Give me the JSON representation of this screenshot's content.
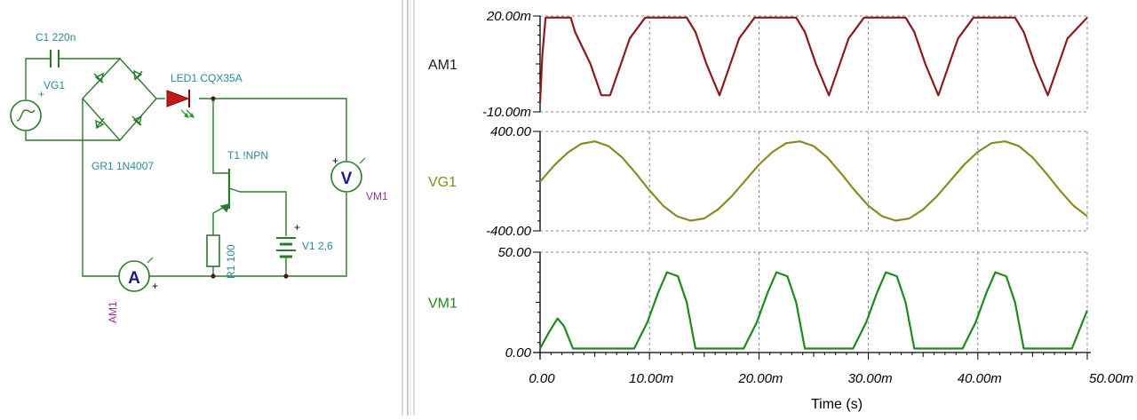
{
  "schematic": {
    "c1_label": "C1 220n",
    "vg1_label": "VG1",
    "led_label": "LED1 CQX35A",
    "bridge_label": "GR1 1N4007",
    "transistor_label": "T1 !NPN",
    "vm1_label": "VM1",
    "v1_label": "V1 2,6",
    "r1_label": "R1 100",
    "am1_label": "AM1",
    "ammeter_symbol": "A",
    "voltmeter_symbol": "V",
    "plus": "+",
    "wire_color": "#2a7a2a",
    "label_color": "#2a8a96",
    "meter_label_color": "#993399"
  },
  "plot": {
    "x_axis_title": "Time (s)",
    "x_ticks": [
      "0.00",
      "10.00m",
      "20.00m",
      "30.00m",
      "40.00m",
      "50.00m"
    ],
    "traces": [
      {
        "name": "AM1",
        "y_top": "20.00m",
        "y_bottom": "-10.00m",
        "color": "#8b1a1a"
      },
      {
        "name": "VG1",
        "y_top": "400.00",
        "y_bottom": "-400.00",
        "color": "#8a8a1e"
      },
      {
        "name": "VM1",
        "y_top": "50.00",
        "y_bottom": "0.00",
        "color": "#1e8a1e"
      }
    ]
  },
  "chart_data": {
    "type": "line",
    "x_unit": "s",
    "xlabel": "Time (s)",
    "xlim": [
      0,
      0.05
    ],
    "grid": true,
    "series": [
      {
        "name": "AM1",
        "ylim": [
          -0.01,
          0.02
        ],
        "x": [
          0,
          0.0002,
          0.0005,
          0.0028,
          0.0032,
          0.0046,
          0.0056,
          0.0064,
          0.0082,
          0.0096,
          0.0134,
          0.0142,
          0.0152,
          0.0164,
          0.0182,
          0.0196,
          0.0234,
          0.0242,
          0.0252,
          0.0264,
          0.0282,
          0.0296,
          0.0334,
          0.0342,
          0.0352,
          0.0364,
          0.0382,
          0.0396,
          0.0434,
          0.0442,
          0.0452,
          0.0464,
          0.0482,
          0.05
        ],
        "values": [
          -0.0072,
          0.0075,
          0.0195,
          0.0195,
          0.015,
          0.005,
          -0.0048,
          -0.0048,
          0.013,
          0.0195,
          0.0195,
          0.015,
          0.005,
          -0.0048,
          0.013,
          0.0195,
          0.0195,
          0.015,
          0.005,
          -0.0048,
          0.013,
          0.0195,
          0.0195,
          0.015,
          0.005,
          -0.0048,
          0.013,
          0.0195,
          0.0195,
          0.015,
          0.005,
          -0.0048,
          0.013,
          0.0195
        ]
      },
      {
        "name": "VG1",
        "ylim": [
          -400,
          400
        ],
        "x": [
          0,
          0.00125,
          0.0025,
          0.00375,
          0.005,
          0.00625,
          0.0075,
          0.00875,
          0.01,
          0.01125,
          0.0125,
          0.01375,
          0.015,
          0.01625,
          0.0175,
          0.01875,
          0.02,
          0.02125,
          0.0225,
          0.02375,
          0.025,
          0.02625,
          0.0275,
          0.02875,
          0.03,
          0.03125,
          0.0325,
          0.03375,
          0.035,
          0.03625,
          0.0375,
          0.03875,
          0.04,
          0.04125,
          0.0425,
          0.04375,
          0.045,
          0.04625,
          0.0475,
          0.04875,
          0.05
        ],
        "values": [
          -5,
          123,
          228,
          300,
          320,
          282,
          191,
          63,
          -75,
          -198,
          -282,
          -318,
          -300,
          -228,
          -123,
          5,
          132,
          236,
          306,
          320,
          282,
          191,
          63,
          -75,
          -198,
          -282,
          -318,
          -300,
          -228,
          -123,
          5,
          132,
          236,
          306,
          320,
          282,
          191,
          63,
          -75,
          -198,
          -282
        ]
      },
      {
        "name": "VM1",
        "ylim": [
          0,
          50
        ],
        "x": [
          0,
          0.0008,
          0.0016,
          0.0022,
          0.003,
          0.0086,
          0.0098,
          0.0108,
          0.0116,
          0.0126,
          0.0134,
          0.0142,
          0.0152,
          0.0186,
          0.0198,
          0.0208,
          0.0216,
          0.0226,
          0.0234,
          0.0242,
          0.0252,
          0.0286,
          0.0298,
          0.0308,
          0.0316,
          0.0326,
          0.0334,
          0.0342,
          0.0352,
          0.0386,
          0.0398,
          0.0408,
          0.0416,
          0.0426,
          0.0434,
          0.0442,
          0.0452,
          0.0486,
          0.05
        ],
        "values": [
          2,
          10,
          17,
          13,
          2,
          2,
          15,
          30,
          40,
          38,
          25,
          2,
          2,
          2,
          15,
          30,
          40,
          38,
          25,
          2,
          2,
          2,
          15,
          30,
          40,
          38,
          25,
          2,
          2,
          2,
          15,
          30,
          40,
          38,
          25,
          2,
          2,
          2,
          21
        ]
      }
    ]
  }
}
